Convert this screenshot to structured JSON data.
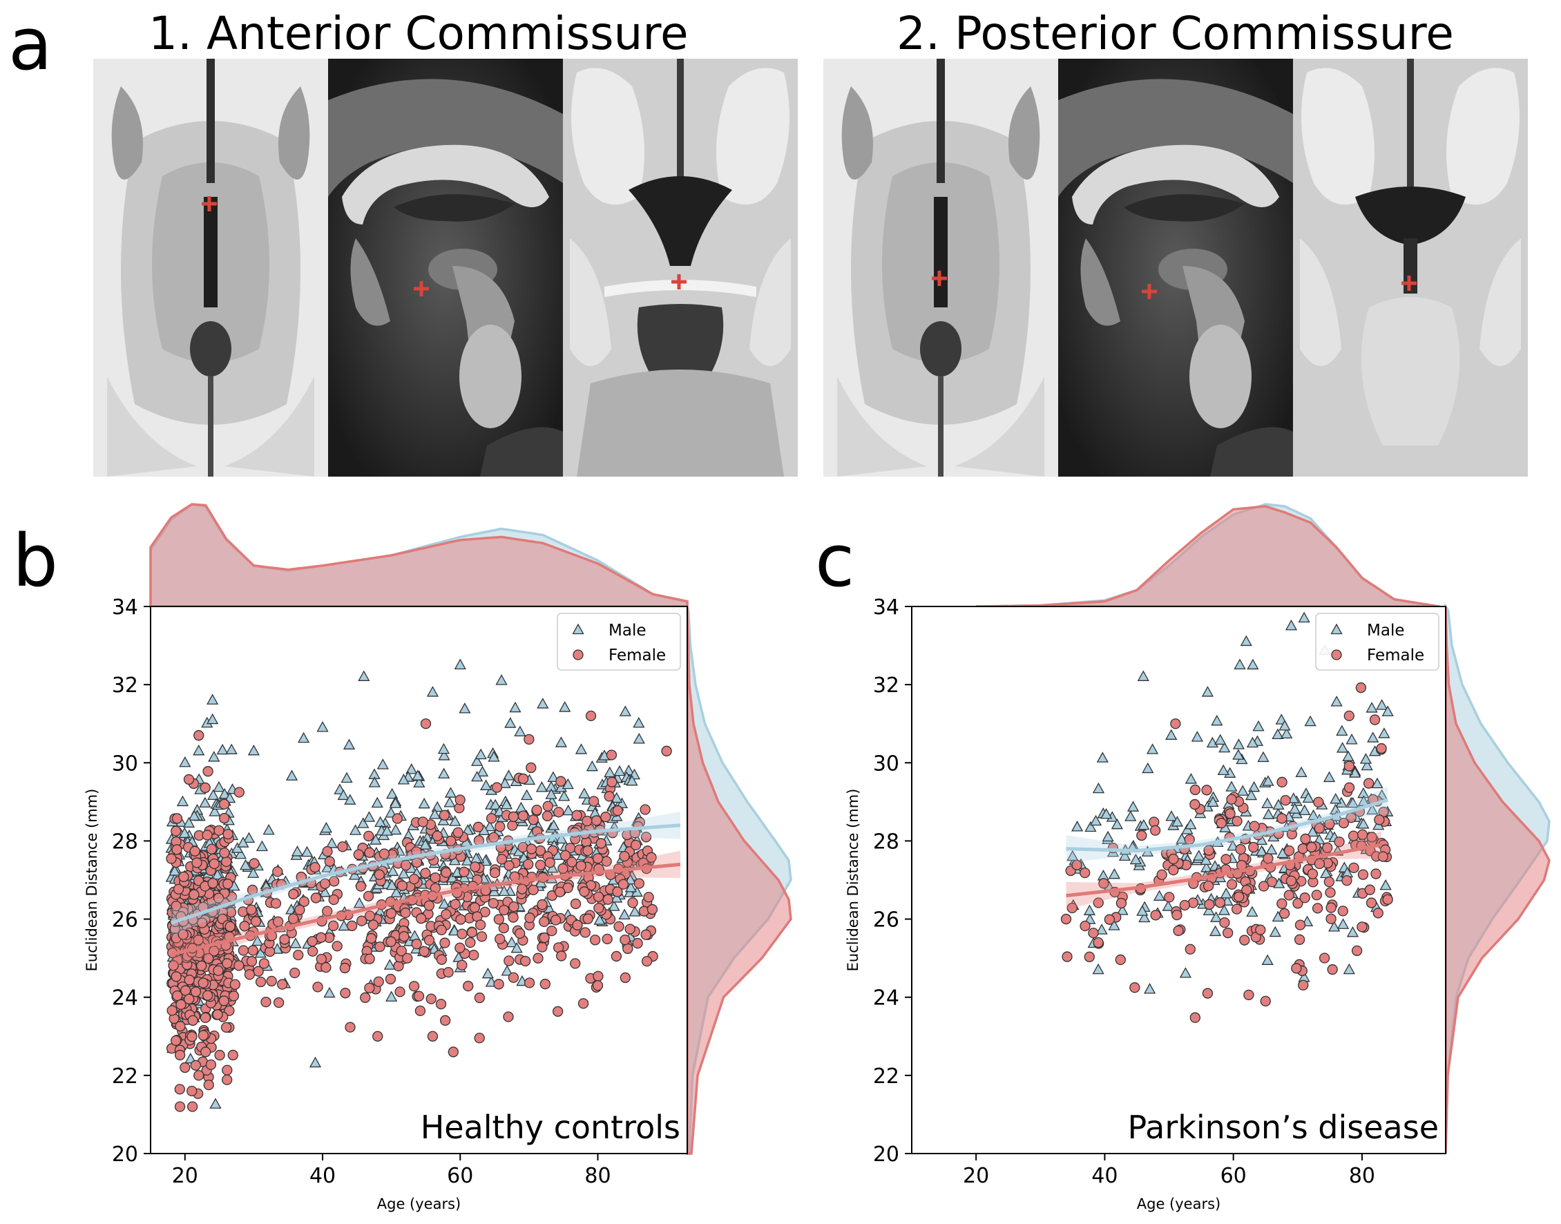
{
  "panel_a": {
    "letter": "a",
    "titles": [
      "1. Anterior Commissure",
      "2. Posterior Commissure"
    ],
    "marker_color": "#d9443a"
  },
  "colors": {
    "male": "#a9cfe0",
    "male_line": "#a9cfe0",
    "female": "#e47f7f",
    "female_line": "#e07a78",
    "marker_edge": "#333333"
  },
  "chart_data": [
    {
      "panel": "b",
      "type": "scatter",
      "title": "",
      "annotation": "Healthy controls",
      "xlabel": "Age (years)",
      "ylabel": "Euclidean Distance (mm)",
      "xlim": [
        15,
        93
      ],
      "ylim": [
        20,
        34
      ],
      "xticks": [
        20,
        40,
        60,
        80
      ],
      "yticks": [
        20,
        22,
        24,
        26,
        28,
        30,
        32,
        34
      ],
      "grid": false,
      "legend": {
        "placement": "top-right",
        "entries": [
          "Male",
          "Female"
        ]
      },
      "series": [
        {
          "name": "Male",
          "marker": "triangle",
          "fit_line": {
            "x": [
              18,
              30,
              40,
              50,
              60,
              70,
              80,
              92
            ],
            "y": [
              25.9,
              26.6,
              27.1,
              27.5,
              27.8,
              28.05,
              28.25,
              28.4
            ]
          },
          "clusters": [
            {
              "x": [
                18,
                27
              ],
              "y_mean": 26.8,
              "y_sd": 1.4,
              "n": 230
            },
            {
              "x": [
                27,
                45
              ],
              "y_mean": 27.2,
              "y_sd": 1.2,
              "n": 75
            },
            {
              "x": [
                45,
                86
              ],
              "y_mean": 27.9,
              "y_sd": 1.3,
              "n": 330
            }
          ],
          "points": [
            [
              24,
              31.6
            ],
            [
              24,
              31.1
            ],
            [
              46,
              32.2
            ],
            [
              60,
              32.5
            ],
            [
              66,
              32.1
            ],
            [
              56,
              31.8
            ],
            [
              72,
              31.5
            ],
            [
              68,
              31.4
            ],
            [
              40,
              30.9
            ],
            [
              30,
              30.3
            ],
            [
              20,
              30.0
            ],
            [
              22,
              30.3
            ],
            [
              84,
              31.3
            ],
            [
              86,
              30.6
            ],
            [
              63,
              30.2
            ],
            [
              41,
              24.1
            ],
            [
              50,
              24.0
            ],
            [
              69,
              24.4
            ],
            [
              47,
              24.3
            ]
          ]
        },
        {
          "name": "Female",
          "marker": "circle",
          "fit_line": {
            "x": [
              18,
              30,
              40,
              50,
              60,
              70,
              80,
              92
            ],
            "y": [
              25.1,
              25.6,
              26.0,
              26.4,
              26.75,
              27.0,
              27.2,
              27.4
            ]
          },
          "clusters": [
            {
              "x": [
                18,
                27
              ],
              "y_mean": 25.3,
              "y_sd": 1.4,
              "n": 480
            },
            {
              "x": [
                27,
                45
              ],
              "y_mean": 25.8,
              "y_sd": 1.1,
              "n": 95
            },
            {
              "x": [
                45,
                88
              ],
              "y_mean": 26.8,
              "y_sd": 1.2,
              "n": 430
            }
          ],
          "points": [
            [
              21,
              21.6
            ],
            [
              22,
              22.0
            ],
            [
              20,
              22.2
            ],
            [
              23,
              22.6
            ],
            [
              59,
              22.6
            ],
            [
              48,
              23.0
            ],
            [
              56,
              23.0
            ],
            [
              67,
              23.5
            ],
            [
              55,
              31.0
            ],
            [
              70,
              30.6
            ],
            [
              79,
              31.2
            ],
            [
              90,
              30.3
            ],
            [
              82,
              30.2
            ],
            [
              87,
              25.6
            ],
            [
              22,
              30.7
            ],
            [
              80,
              24.3
            ],
            [
              84,
              24.5
            ]
          ]
        }
      ],
      "marginal_x": {
        "Male": {
          "x": [
            15,
            18,
            21,
            23,
            26,
            30,
            35,
            40,
            50,
            60,
            66,
            72,
            80,
            88,
            93
          ],
          "density": [
            0.55,
            0.85,
            1.0,
            0.98,
            0.65,
            0.4,
            0.35,
            0.4,
            0.5,
            0.68,
            0.76,
            0.7,
            0.45,
            0.12,
            0.05
          ]
        },
        "Female": {
          "x": [
            15,
            18,
            21,
            23,
            26,
            30,
            35,
            40,
            50,
            60,
            66,
            72,
            80,
            88,
            93
          ],
          "density": [
            0.58,
            0.87,
            1.0,
            0.99,
            0.66,
            0.4,
            0.36,
            0.4,
            0.5,
            0.65,
            0.68,
            0.62,
            0.42,
            0.12,
            0.05
          ]
        }
      },
      "marginal_y": {
        "Male": {
          "y": [
            20,
            22,
            24,
            25,
            26,
            27,
            27.5,
            28,
            29,
            30,
            31,
            32,
            33,
            34
          ],
          "density": [
            0.02,
            0.05,
            0.2,
            0.45,
            0.78,
            1.0,
            0.98,
            0.85,
            0.58,
            0.34,
            0.17,
            0.08,
            0.03,
            0.01
          ]
        },
        "Female": {
          "y": [
            20,
            22,
            24,
            25,
            26,
            26.5,
            27,
            28,
            29,
            30,
            31,
            32,
            33,
            34
          ],
          "density": [
            0.04,
            0.1,
            0.35,
            0.72,
            1.0,
            0.98,
            0.88,
            0.55,
            0.3,
            0.15,
            0.06,
            0.02,
            0.01,
            0.0
          ]
        }
      }
    },
    {
      "panel": "c",
      "type": "scatter",
      "title": "",
      "annotation": "Parkinson’s disease",
      "xlabel": "Age (years)",
      "ylabel": "Euclidean Distance (mm)",
      "xlim": [
        10,
        93
      ],
      "ylim": [
        20,
        34
      ],
      "xticks": [
        20,
        40,
        60,
        80
      ],
      "yticks": [
        20,
        22,
        24,
        26,
        28,
        30,
        32,
        34
      ],
      "grid": false,
      "legend": {
        "placement": "top-right",
        "entries": [
          "Male",
          "Female"
        ]
      },
      "series": [
        {
          "name": "Male",
          "marker": "triangle",
          "fit_line": {
            "x": [
              34,
              45,
              55,
              65,
              75,
              84
            ],
            "y": [
              27.8,
              27.75,
              27.9,
              28.2,
              28.6,
              29.05
            ]
          },
          "clusters": [
            {
              "x": [
                34,
                50
              ],
              "y_mean": 27.6,
              "y_sd": 1.4,
              "n": 45
            },
            {
              "x": [
                50,
                84
              ],
              "y_mean": 28.3,
              "y_sd": 1.4,
              "n": 190
            }
          ],
          "points": [
            [
              46,
              32.2
            ],
            [
              62,
              33.1
            ],
            [
              61,
              32.5
            ],
            [
              69,
              33.5
            ],
            [
              71,
              33.7
            ],
            [
              56,
              31.8
            ],
            [
              84,
              31.3
            ],
            [
              39,
              24.7
            ],
            [
              47,
              24.2
            ],
            [
              71,
              24.5
            ],
            [
              78,
              24.7
            ],
            [
              35,
              27.6
            ]
          ]
        },
        {
          "name": "Female",
          "marker": "circle",
          "fit_line": {
            "x": [
              34,
              45,
              55,
              65,
              75,
              83
            ],
            "y": [
              26.6,
              26.8,
              27.05,
              27.35,
              27.65,
              27.9
            ]
          },
          "clusters": [
            {
              "x": [
                34,
                50
              ],
              "y_mean": 26.6,
              "y_sd": 1.2,
              "n": 30
            },
            {
              "x": [
                50,
                84
              ],
              "y_mean": 27.3,
              "y_sd": 1.2,
              "n": 190
            }
          ],
          "points": [
            [
              34,
              26.0
            ],
            [
              39,
              25.4
            ],
            [
              56,
              24.1
            ],
            [
              65,
              23.9
            ],
            [
              51,
              31.0
            ],
            [
              82,
              31.1
            ],
            [
              78,
              31.2
            ],
            [
              84,
              26.5
            ],
            [
              80,
              25.8
            ]
          ]
        }
      ],
      "marginal_x": {
        "Male": {
          "x": [
            20,
            30,
            40,
            45,
            50,
            55,
            60,
            65,
            68,
            72,
            76,
            80,
            85,
            92
          ],
          "density": [
            0.0,
            0.01,
            0.06,
            0.16,
            0.4,
            0.68,
            0.9,
            1.0,
            0.98,
            0.86,
            0.58,
            0.28,
            0.07,
            0.0
          ]
        },
        "Female": {
          "x": [
            20,
            30,
            40,
            45,
            50,
            55,
            60,
            65,
            68,
            72,
            76,
            80,
            85,
            92
          ],
          "density": [
            0.0,
            0.01,
            0.05,
            0.16,
            0.45,
            0.72,
            0.95,
            0.98,
            0.92,
            0.82,
            0.58,
            0.28,
            0.07,
            0.0
          ]
        }
      },
      "marginal_y": {
        "Male": {
          "y": [
            20,
            22,
            24,
            25,
            26,
            27,
            28,
            28.5,
            29,
            30,
            31,
            32,
            33,
            34
          ],
          "density": [
            0.0,
            0.02,
            0.1,
            0.22,
            0.45,
            0.72,
            0.98,
            1.0,
            0.9,
            0.6,
            0.34,
            0.16,
            0.06,
            0.02
          ]
        },
        "Female": {
          "y": [
            20,
            22,
            24,
            25,
            26,
            27,
            27.5,
            28,
            29,
            30,
            31,
            32,
            33,
            34
          ],
          "density": [
            0.0,
            0.02,
            0.12,
            0.35,
            0.7,
            0.95,
            1.0,
            0.9,
            0.55,
            0.28,
            0.1,
            0.03,
            0.01,
            0.0
          ]
        }
      }
    }
  ]
}
